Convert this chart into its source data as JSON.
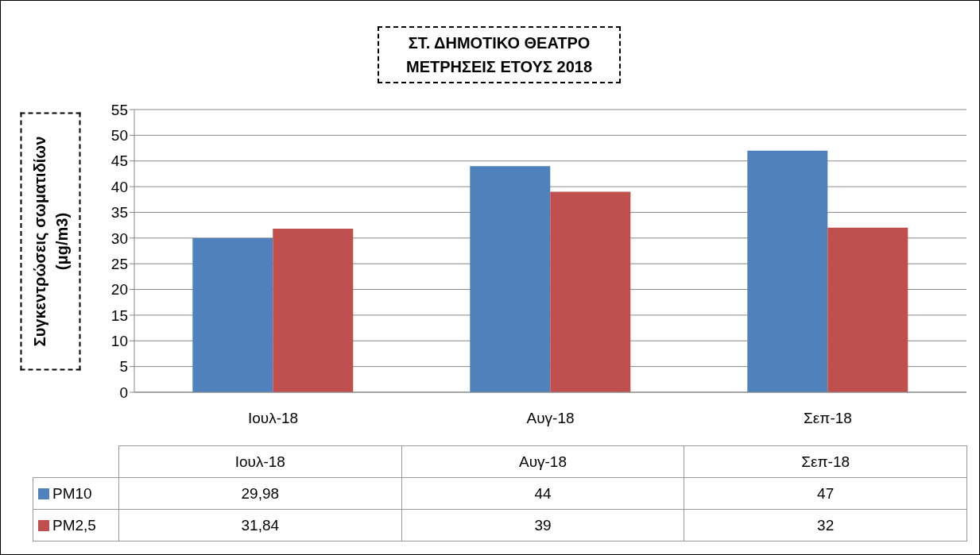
{
  "chart_data": {
    "type": "bar",
    "title": "ΣΤ. ΔΗΜΟΤΙΚΟ ΘΕΑΤΡΟ\nΜΕΤΡΗΣΕΙΣ ΕΤΟΥΣ 2018",
    "ylabel": "Συγκεντρώσεις σωματιδίων\n(μg/m3)",
    "categories": [
      "Ιουλ-18",
      "Αυγ-18",
      "Σεπ-18"
    ],
    "series": [
      {
        "name": "PM10",
        "color": "#4f81bd",
        "values": [
          29.98,
          44,
          47
        ],
        "value_labels": [
          "29,98",
          "44",
          "47"
        ]
      },
      {
        "name": "PM2,5",
        "color": "#c0504d",
        "values": [
          31.84,
          39,
          32
        ],
        "value_labels": [
          "31,84",
          "39",
          "32"
        ]
      }
    ],
    "ylim": [
      0,
      55
    ],
    "yticks": [
      0,
      5,
      10,
      15,
      20,
      25,
      30,
      35,
      40,
      45,
      50,
      55
    ],
    "grid": "y",
    "legend": "bottom"
  }
}
